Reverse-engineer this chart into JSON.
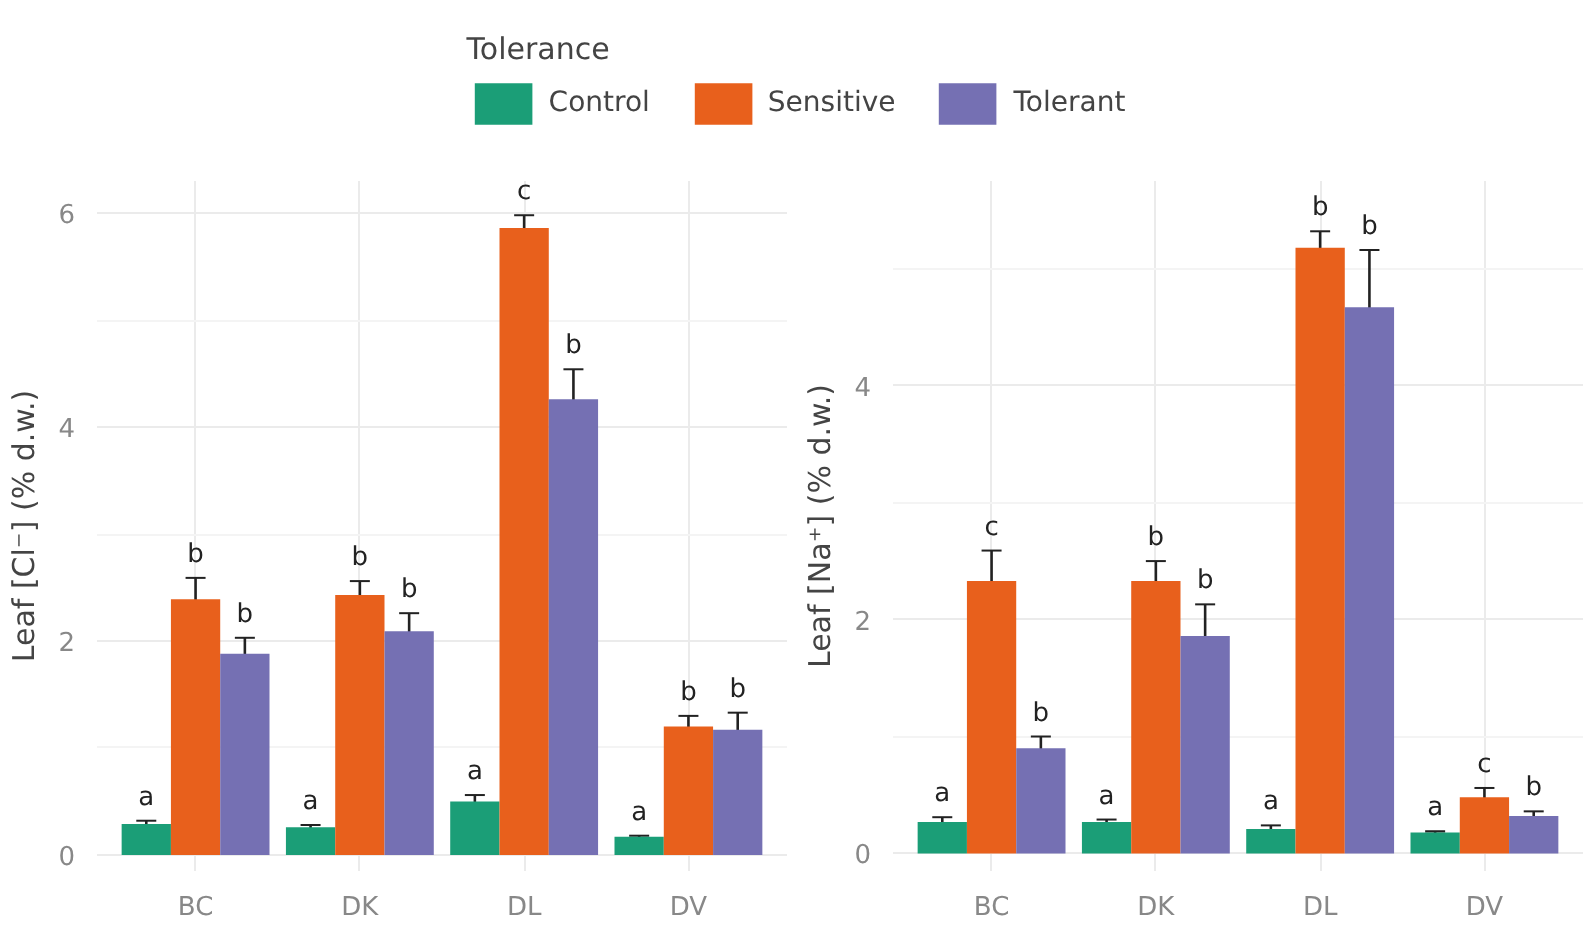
{
  "chart_data": [
    {
      "type": "bar",
      "legend_title": "Tolerance",
      "legend": "top",
      "ylabel": "Leaf [Cl⁻] (% d.w.)",
      "categories": [
        "BC",
        "DK",
        "DL",
        "DV"
      ],
      "ylim": [
        -0.15,
        6.3
      ],
      "yticks": [
        0,
        2,
        4,
        6
      ],
      "grid": true,
      "series": [
        {
          "name": "Control",
          "color": "#1b9e77",
          "values": [
            0.29,
            0.26,
            0.5,
            0.17
          ],
          "errors": [
            0.03,
            0.02,
            0.06,
            0.01
          ],
          "value_labels": [
            "a",
            "a",
            "a",
            "a"
          ]
        },
        {
          "name": "Sensitive",
          "color": "#e8601c",
          "values": [
            2.39,
            2.43,
            5.86,
            1.2
          ],
          "errors": [
            0.2,
            0.13,
            0.12,
            0.1
          ],
          "value_labels": [
            "b",
            "b",
            "c",
            "b"
          ]
        },
        {
          "name": "Tolerant",
          "color": "#7570b3",
          "values": [
            1.88,
            2.09,
            4.26,
            1.17
          ],
          "errors": [
            0.15,
            0.17,
            0.28,
            0.16
          ],
          "value_labels": [
            "b",
            "b",
            "b",
            "b"
          ]
        }
      ]
    },
    {
      "type": "bar",
      "ylabel": "Leaf [Na⁺] (% d.w.)",
      "categories": [
        "BC",
        "DK",
        "DL",
        "DV"
      ],
      "ylim": [
        -0.15,
        5.75
      ],
      "yticks": [
        0,
        2,
        4
      ],
      "grid": true,
      "series": [
        {
          "color": "#1b9e77",
          "values": [
            0.27,
            0.27,
            0.21,
            0.18
          ],
          "errors": [
            0.04,
            0.02,
            0.03,
            0.01
          ],
          "value_labels": [
            "a",
            "a",
            "a",
            "a"
          ]
        },
        {
          "color": "#e8601c",
          "values": [
            2.33,
            2.33,
            5.18,
            0.48
          ],
          "errors": [
            0.26,
            0.17,
            0.14,
            0.08
          ],
          "value_labels": [
            "c",
            "b",
            "b",
            "c"
          ]
        },
        {
          "color": "#7570b3",
          "values": [
            0.9,
            1.86,
            4.67,
            0.32
          ],
          "errors": [
            0.1,
            0.27,
            0.49,
            0.04
          ],
          "value_labels": [
            "b",
            "b",
            "b",
            "b"
          ]
        }
      ]
    }
  ]
}
